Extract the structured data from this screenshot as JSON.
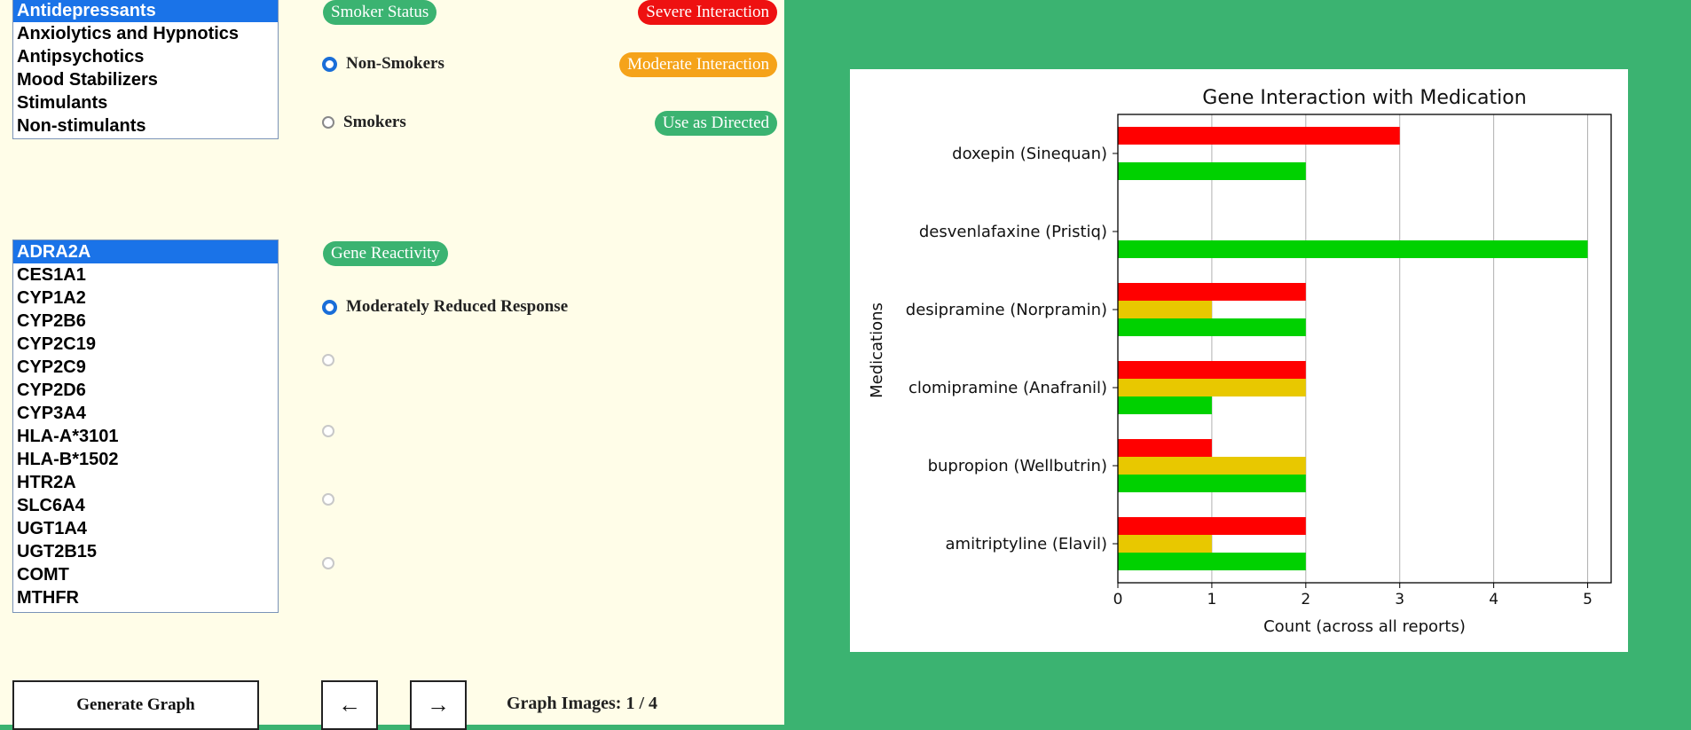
{
  "medication_classes": {
    "selected": "Antidepressants",
    "items": [
      "Antidepressants",
      "Anxiolytics and Hypnotics",
      "Antipsychotics",
      "Mood Stabilizers",
      "Stimulants",
      "Non-stimulants"
    ]
  },
  "genes": {
    "selected": "ADRA2A",
    "items": [
      "ADRA2A",
      "CES1A1",
      "CYP1A2",
      "CYP2B6",
      "CYP2C19",
      "CYP2C9",
      "CYP2D6",
      "CYP3A4",
      "HLA-A*3101",
      "HLA-B*1502",
      "HTR2A",
      "SLC6A4",
      "UGT1A4",
      "UGT2B15",
      "COMT",
      "MTHFR"
    ]
  },
  "smoker_status": {
    "label": "Smoker Status",
    "options": [
      {
        "label": "Non-Smokers",
        "checked": true
      },
      {
        "label": "Smokers",
        "checked": false
      }
    ]
  },
  "legend": {
    "severe": "Severe Interaction",
    "moderate": "Moderate Interaction",
    "directed": "Use as Directed"
  },
  "gene_reactivity": {
    "label": "Gene Reactivity",
    "options": [
      {
        "label": "Moderately Reduced Response",
        "checked": true
      },
      {
        "label": "",
        "checked": false
      },
      {
        "label": "",
        "checked": false
      },
      {
        "label": "",
        "checked": false
      },
      {
        "label": "",
        "checked": false
      }
    ]
  },
  "controls": {
    "generate": "Generate Graph",
    "prev": "←",
    "next": "→",
    "counter": "Graph Images: 1 / 4"
  },
  "colors": {
    "severe": "#ff0000",
    "moderate": "#e8c800",
    "directed": "#00d100",
    "accent_green": "#3bb371",
    "select_blue": "#1a73e8"
  },
  "chart_data": {
    "type": "bar",
    "orientation": "horizontal",
    "title": "Gene Interaction with Medication",
    "xlabel": "Count (across all reports)",
    "ylabel": "Medications",
    "xlim": [
      0,
      5.25
    ],
    "xticks": [
      0,
      1,
      2,
      3,
      4,
      5
    ],
    "grid": "x",
    "categories": [
      "doxepin (Sinequan)",
      "desvenlafaxine (Pristiq)",
      "desipramine (Norpramin)",
      "clomipramine (Anafranil)",
      "bupropion (Wellbutrin)",
      "amitriptyline (Elavil)"
    ],
    "series": [
      {
        "name": "Severe Interaction",
        "color": "#ff0000",
        "values": [
          3,
          0,
          2,
          2,
          1,
          2
        ]
      },
      {
        "name": "Moderate Interaction",
        "color": "#e8c800",
        "values": [
          0,
          0,
          1,
          2,
          2,
          1
        ]
      },
      {
        "name": "Use as Directed",
        "color": "#00d100",
        "values": [
          2,
          5,
          2,
          1,
          2,
          2
        ]
      }
    ]
  }
}
